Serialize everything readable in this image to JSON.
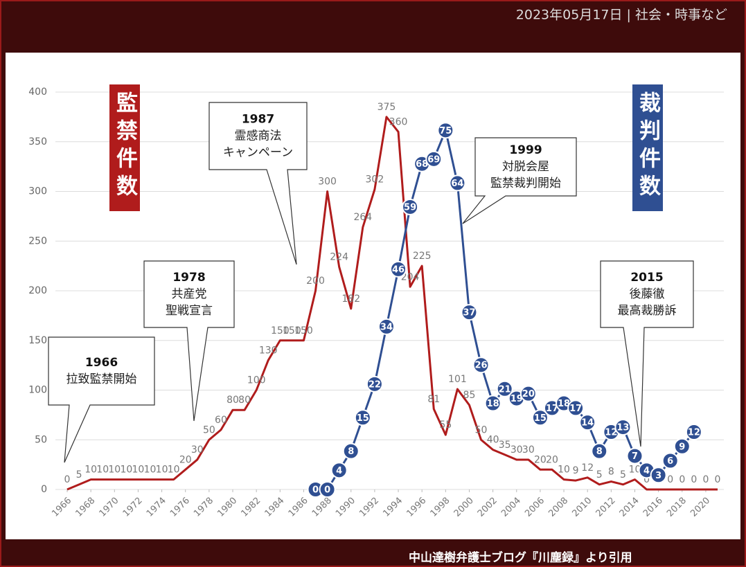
{
  "header": "2023年05月17日 | 社会・時事など",
  "footer": "中山達樹弁護士ブログ『川塵録』より引用",
  "chart_data": {
    "type": "line",
    "x": [
      1966,
      1967,
      1968,
      1969,
      1970,
      1971,
      1972,
      1973,
      1974,
      1975,
      1976,
      1977,
      1978,
      1979,
      1980,
      1981,
      1982,
      1983,
      1984,
      1985,
      1986,
      1987,
      1988,
      1989,
      1990,
      1991,
      1992,
      1993,
      1994,
      1995,
      1996,
      1997,
      1998,
      1999,
      2000,
      2001,
      2002,
      2003,
      2004,
      2005,
      2006,
      2007,
      2008,
      2009,
      2010,
      2011,
      2012,
      2013,
      2014,
      2015,
      2016,
      2017,
      2018,
      2019,
      2020,
      2021
    ],
    "series": [
      {
        "name": "監禁件数",
        "color": "#b01c1c",
        "values": [
          0,
          5,
          10,
          10,
          10,
          10,
          10,
          10,
          10,
          10,
          20,
          30,
          50,
          60,
          80,
          80,
          100,
          130,
          150,
          150,
          150,
          200,
          300,
          224,
          182,
          264,
          302,
          375,
          360,
          204,
          225,
          81,
          55,
          101,
          85,
          50,
          40,
          35,
          30,
          30,
          20,
          20,
          10,
          9,
          12,
          5,
          8,
          5,
          10,
          0,
          0,
          0,
          0,
          0,
          0,
          0
        ]
      },
      {
        "name": "裁判件数",
        "color": "#2f4f92",
        "axis": "y2",
        "values": [
          null,
          null,
          null,
          null,
          null,
          null,
          null,
          null,
          null,
          null,
          null,
          null,
          null,
          null,
          null,
          null,
          null,
          null,
          null,
          null,
          null,
          0,
          0,
          4,
          8,
          15,
          22,
          34,
          46,
          59,
          68,
          69,
          75,
          64,
          37,
          26,
          18,
          21,
          19,
          20,
          15,
          17,
          18,
          17,
          14,
          8,
          12,
          13,
          7,
          4,
          3,
          6,
          9,
          12,
          null,
          null
        ]
      }
    ],
    "xlim": [
      1966,
      2021
    ],
    "xticks": [
      1966,
      1968,
      1970,
      1972,
      1974,
      1976,
      1978,
      1980,
      1982,
      1984,
      1986,
      1988,
      1990,
      1992,
      1994,
      1996,
      1998,
      2000,
      2002,
      2004,
      2006,
      2008,
      2010,
      2012,
      2014,
      2016,
      2018,
      2020
    ],
    "ylim": [
      0,
      400
    ],
    "yticks": [
      0,
      50,
      100,
      150,
      200,
      250,
      300,
      350,
      400
    ],
    "y2lim": [
      0,
      83
    ],
    "grid": true,
    "annotations": [
      {
        "title": "1966",
        "lines": [
          "拉致監禁開始"
        ]
      },
      {
        "title": "1978",
        "lines": [
          "共産党",
          "聖戦宣言"
        ]
      },
      {
        "title": "1987",
        "lines": [
          "霊感商法",
          "キャンペーン"
        ]
      },
      {
        "title": "1999",
        "lines": [
          "対脱会屋",
          "監禁裁判開始"
        ]
      },
      {
        "title": "2015",
        "lines": [
          "後藤徹",
          "最高裁勝訴"
        ]
      }
    ]
  }
}
